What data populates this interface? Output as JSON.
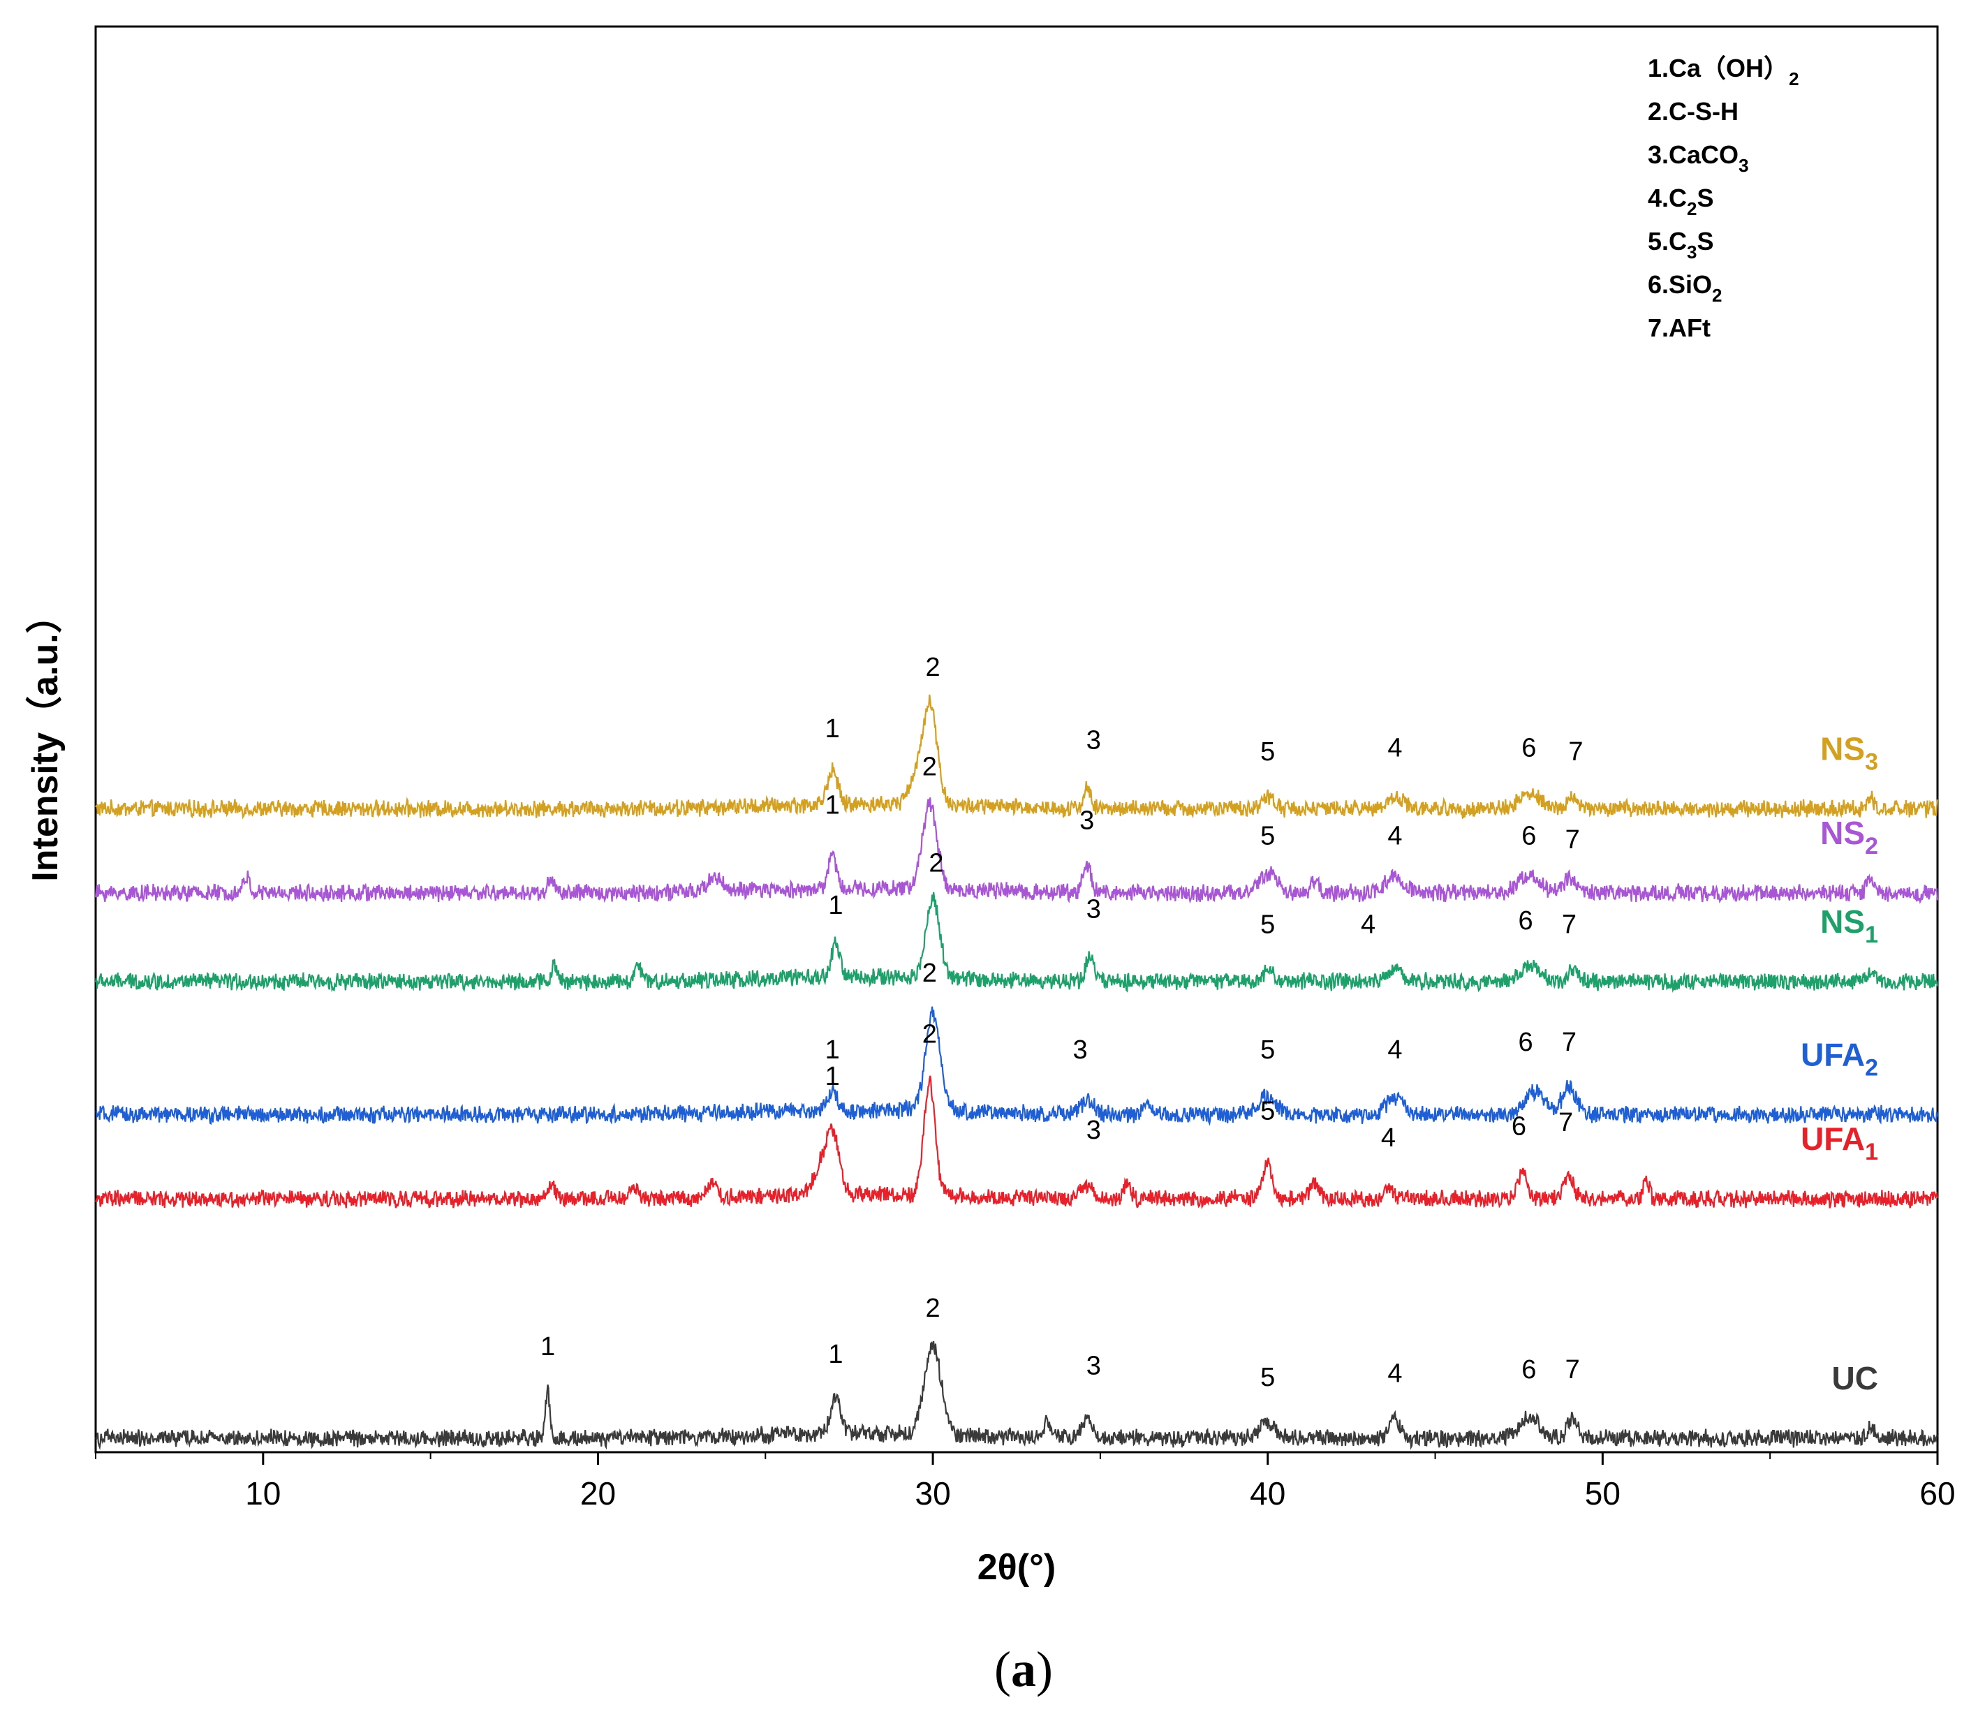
{
  "chart_data": {
    "type": "line",
    "title": "",
    "xlabel": "2θ(°)",
    "ylabel": "Intensity（a.u.）",
    "xlim": [
      5,
      60
    ],
    "x_ticks": [
      10,
      20,
      30,
      40,
      50,
      60
    ],
    "grid": false,
    "caption": "(a)",
    "legend": {
      "placement": "top-right",
      "entries": [
        {
          "num": "1.",
          "parts": [
            {
              "t": "Ca（OH）"
            },
            {
              "t": "2",
              "sub": true
            }
          ]
        },
        {
          "num": "2.",
          "parts": [
            {
              "t": "C-S-H"
            }
          ]
        },
        {
          "num": "3.",
          "parts": [
            {
              "t": "CaCO"
            },
            {
              "t": "3",
              "sub": true
            }
          ]
        },
        {
          "num": "4.",
          "parts": [
            {
              "t": "C"
            },
            {
              "t": "2",
              "sub": true
            },
            {
              "t": "S"
            }
          ]
        },
        {
          "num": "5.",
          "parts": [
            {
              "t": "C"
            },
            {
              "t": "3",
              "sub": true
            },
            {
              "t": "S"
            }
          ]
        },
        {
          "num": "6.",
          "parts": [
            {
              "t": "SiO"
            },
            {
              "t": "2",
              "sub": true
            }
          ]
        },
        {
          "num": "7.",
          "parts": [
            {
              "t": "AFt"
            }
          ]
        }
      ]
    },
    "series": [
      {
        "name": "NS3",
        "label_main": "NS",
        "label_sub": "3",
        "color": "#D4A020",
        "baseline": 0.71,
        "peaks": [
          {
            "x": 27.0,
            "h": 0.9,
            "w": 0.15
          },
          {
            "x": 29.9,
            "h": 2.7,
            "w": 0.22
          },
          {
            "x": 29.4,
            "h": 0.5,
            "w": 0.2
          },
          {
            "x": 34.6,
            "h": 0.55,
            "w": 0.1
          },
          {
            "x": 40.0,
            "h": 0.3,
            "w": 0.2
          },
          {
            "x": 43.8,
            "h": 0.3,
            "w": 0.25
          },
          {
            "x": 47.8,
            "h": 0.4,
            "w": 0.3
          },
          {
            "x": 49.1,
            "h": 0.3,
            "w": 0.15
          },
          {
            "x": 58.0,
            "h": 0.3,
            "w": 0.1
          }
        ],
        "labels": [
          {
            "text": "1",
            "x": 27.0,
            "dy": 1.5
          },
          {
            "text": "2",
            "x": 30.0,
            "dy": 3.1
          },
          {
            "text": "3",
            "x": 34.8,
            "dy": 1.2
          },
          {
            "text": "5",
            "x": 40.0,
            "dy": 0.9
          },
          {
            "text": "4",
            "x": 43.8,
            "dy": 1.0
          },
          {
            "text": "6",
            "x": 47.8,
            "dy": 1.0
          },
          {
            "text": "7",
            "x": 49.2,
            "dy": 0.9
          }
        ]
      },
      {
        "name": "NS2",
        "label_main": "NS",
        "label_sub": "2",
        "color": "#A855D6",
        "baseline": 0.615,
        "peaks": [
          {
            "x": 27.0,
            "h": 0.9,
            "w": 0.12
          },
          {
            "x": 29.9,
            "h": 2.2,
            "w": 0.22
          },
          {
            "x": 34.6,
            "h": 0.75,
            "w": 0.12
          },
          {
            "x": 40.0,
            "h": 0.5,
            "w": 0.25
          },
          {
            "x": 43.8,
            "h": 0.4,
            "w": 0.3
          },
          {
            "x": 47.8,
            "h": 0.5,
            "w": 0.3
          },
          {
            "x": 49.0,
            "h": 0.35,
            "w": 0.2
          },
          {
            "x": 9.5,
            "h": 0.4,
            "w": 0.1
          },
          {
            "x": 18.6,
            "h": 0.35,
            "w": 0.1
          },
          {
            "x": 23.5,
            "h": 0.4,
            "w": 0.2
          },
          {
            "x": 41.4,
            "h": 0.35,
            "w": 0.1
          },
          {
            "x": 58.0,
            "h": 0.4,
            "w": 0.1
          }
        ],
        "labels": [
          {
            "text": "1",
            "x": 27.0,
            "dy": 1.7
          },
          {
            "text": "2",
            "x": 29.9,
            "dy": 2.7
          },
          {
            "text": "3",
            "x": 34.6,
            "dy": 1.3
          },
          {
            "text": "5",
            "x": 40.0,
            "dy": 0.9
          },
          {
            "text": "4",
            "x": 43.8,
            "dy": 0.9
          },
          {
            "text": "6",
            "x": 47.8,
            "dy": 0.9
          },
          {
            "text": "7",
            "x": 49.1,
            "dy": 0.8
          }
        ]
      },
      {
        "name": "NS1",
        "label_main": "NS",
        "label_sub": "1",
        "color": "#1EA06A",
        "baseline": 0.515,
        "peaks": [
          {
            "x": 27.1,
            "h": 0.9,
            "w": 0.12
          },
          {
            "x": 30.0,
            "h": 2.1,
            "w": 0.2
          },
          {
            "x": 34.7,
            "h": 0.7,
            "w": 0.12
          },
          {
            "x": 40.0,
            "h": 0.3,
            "w": 0.15
          },
          {
            "x": 43.8,
            "h": 0.3,
            "w": 0.25
          },
          {
            "x": 47.8,
            "h": 0.4,
            "w": 0.3
          },
          {
            "x": 49.1,
            "h": 0.3,
            "w": 0.15
          },
          {
            "x": 18.7,
            "h": 0.45,
            "w": 0.08
          },
          {
            "x": 21.2,
            "h": 0.4,
            "w": 0.1
          },
          {
            "x": 58.0,
            "h": 0.3,
            "w": 0.1
          }
        ],
        "labels": [
          {
            "text": "1",
            "x": 27.1,
            "dy": 1.4
          },
          {
            "text": "2",
            "x": 30.1,
            "dy": 2.5
          },
          {
            "text": "3",
            "x": 34.8,
            "dy": 1.3
          },
          {
            "text": "5",
            "x": 40.0,
            "dy": 0.9
          },
          {
            "text": "4",
            "x": 43.0,
            "dy": 0.9
          },
          {
            "text": "6",
            "x": 47.7,
            "dy": 1.0
          },
          {
            "text": "7",
            "x": 49.0,
            "dy": 0.9
          }
        ]
      },
      {
        "name": "UFA2",
        "label_main": "UFA",
        "label_sub": "2",
        "color": "#1F5FD6",
        "baseline": 0.365,
        "peaks": [
          {
            "x": 27.0,
            "h": 0.45,
            "w": 0.15
          },
          {
            "x": 30.0,
            "h": 2.5,
            "w": 0.22
          },
          {
            "x": 34.6,
            "h": 0.35,
            "w": 0.2
          },
          {
            "x": 36.4,
            "h": 0.35,
            "w": 0.1
          },
          {
            "x": 40.0,
            "h": 0.5,
            "w": 0.25
          },
          {
            "x": 43.8,
            "h": 0.45,
            "w": 0.25
          },
          {
            "x": 48.0,
            "h": 0.6,
            "w": 0.3
          },
          {
            "x": 49.0,
            "h": 0.75,
            "w": 0.2
          }
        ],
        "labels": [
          {
            "text": "1",
            "x": 27.0,
            "dy": 1.1
          },
          {
            "text": "2",
            "x": 29.9,
            "dy": 3.1
          },
          {
            "text": "3",
            "x": 34.4,
            "dy": 1.1
          },
          {
            "text": "5",
            "x": 40.0,
            "dy": 1.1
          },
          {
            "text": "4",
            "x": 43.8,
            "dy": 1.1
          },
          {
            "text": "6",
            "x": 47.7,
            "dy": 1.3
          },
          {
            "text": "7",
            "x": 49.0,
            "dy": 1.3
          }
        ]
      },
      {
        "name": "UFA1",
        "label_main": "UFA",
        "label_sub": "1",
        "color": "#E8202A",
        "baseline": 0.27,
        "peaks": [
          {
            "x": 27.0,
            "h": 1.6,
            "w": 0.2
          },
          {
            "x": 26.6,
            "h": 0.6,
            "w": 0.2
          },
          {
            "x": 29.9,
            "h": 2.9,
            "w": 0.17
          },
          {
            "x": 34.6,
            "h": 0.3,
            "w": 0.2
          },
          {
            "x": 35.8,
            "h": 0.4,
            "w": 0.1
          },
          {
            "x": 40.0,
            "h": 0.9,
            "w": 0.15
          },
          {
            "x": 41.4,
            "h": 0.4,
            "w": 0.15
          },
          {
            "x": 43.6,
            "h": 0.35,
            "w": 0.1
          },
          {
            "x": 47.6,
            "h": 0.6,
            "w": 0.15
          },
          {
            "x": 49.0,
            "h": 0.55,
            "w": 0.15
          },
          {
            "x": 51.3,
            "h": 0.4,
            "w": 0.1
          },
          {
            "x": 18.6,
            "h": 0.4,
            "w": 0.1
          },
          {
            "x": 21.1,
            "h": 0.35,
            "w": 0.1
          },
          {
            "x": 23.4,
            "h": 0.4,
            "w": 0.15
          }
        ],
        "labels": [
          {
            "text": "1",
            "x": 27.0,
            "dy": 2.6
          },
          {
            "text": "2",
            "x": 29.9,
            "dy": 3.7
          },
          {
            "text": "3",
            "x": 34.8,
            "dy": 1.2
          },
          {
            "text": "5",
            "x": 40.0,
            "dy": 1.7
          },
          {
            "text": "4",
            "x": 43.6,
            "dy": 1.0
          },
          {
            "text": "6",
            "x": 47.5,
            "dy": 1.3
          },
          {
            "text": "7",
            "x": 48.9,
            "dy": 1.4
          }
        ]
      },
      {
        "name": "UC",
        "label_main": "UC",
        "label_sub": "",
        "color": "#3A3A3A",
        "baseline": 0.0,
        "peaks": [
          {
            "x": 18.5,
            "h": 1.2,
            "w": 0.07
          },
          {
            "x": 27.1,
            "h": 1.0,
            "w": 0.15
          },
          {
            "x": 30.0,
            "h": 2.3,
            "w": 0.25
          },
          {
            "x": 33.4,
            "h": 0.4,
            "w": 0.08
          },
          {
            "x": 34.6,
            "h": 0.5,
            "w": 0.15
          },
          {
            "x": 40.0,
            "h": 0.4,
            "w": 0.25
          },
          {
            "x": 43.8,
            "h": 0.55,
            "w": 0.15
          },
          {
            "x": 47.8,
            "h": 0.55,
            "w": 0.3
          },
          {
            "x": 49.1,
            "h": 0.55,
            "w": 0.15
          },
          {
            "x": 58.0,
            "h": 0.3,
            "w": 0.1
          }
        ],
        "labels": [
          {
            "text": "1",
            "x": 18.5,
            "dy": 1.8
          },
          {
            "text": "1",
            "x": 27.1,
            "dy": 1.6
          },
          {
            "text": "2",
            "x": 30.0,
            "dy": 2.8
          },
          {
            "text": "3",
            "x": 34.8,
            "dy": 1.3
          },
          {
            "text": "5",
            "x": 40.0,
            "dy": 1.0
          },
          {
            "text": "4",
            "x": 43.8,
            "dy": 1.1
          },
          {
            "text": "6",
            "x": 47.8,
            "dy": 1.2
          },
          {
            "text": "7",
            "x": 49.1,
            "dy": 1.2
          }
        ]
      }
    ]
  }
}
